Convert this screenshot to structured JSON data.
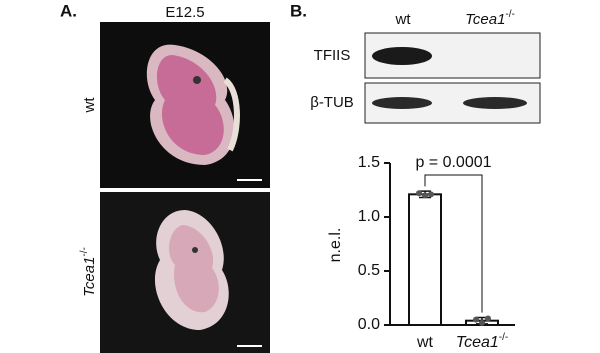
{
  "panel_a": {
    "label": "A.",
    "stage": "E12.5",
    "rows": [
      {
        "name": "wt"
      },
      {
        "name": "Tcea1",
        "sup": "-/-"
      }
    ]
  },
  "panel_b": {
    "label": "B.",
    "blot": {
      "columns": [
        {
          "name": "wt"
        },
        {
          "name": "Tcea1",
          "sup": "-/-"
        }
      ],
      "rows": [
        "TFIIS",
        "β-TUB"
      ]
    }
  },
  "chart_data": {
    "type": "bar",
    "categories": [
      "wt",
      "Tcea1"
    ],
    "category_sup": [
      null,
      "-/-"
    ],
    "values": [
      1.21,
      0.04
    ],
    "errors": [
      0.03,
      0.03
    ],
    "points": [
      [
        1.22,
        1.2,
        1.21
      ],
      [
        0.05,
        0.02,
        0.06
      ]
    ],
    "ylabel": "n.e.l.",
    "annotation": "p = 0.0001",
    "color": "#ffffff",
    "ylim": [
      0,
      1.5
    ],
    "yticks": [
      {
        "value": 0,
        "label": "0.0"
      },
      0.5,
      {
        "value": 1,
        "label": "1.0"
      },
      1.5
    ]
  }
}
